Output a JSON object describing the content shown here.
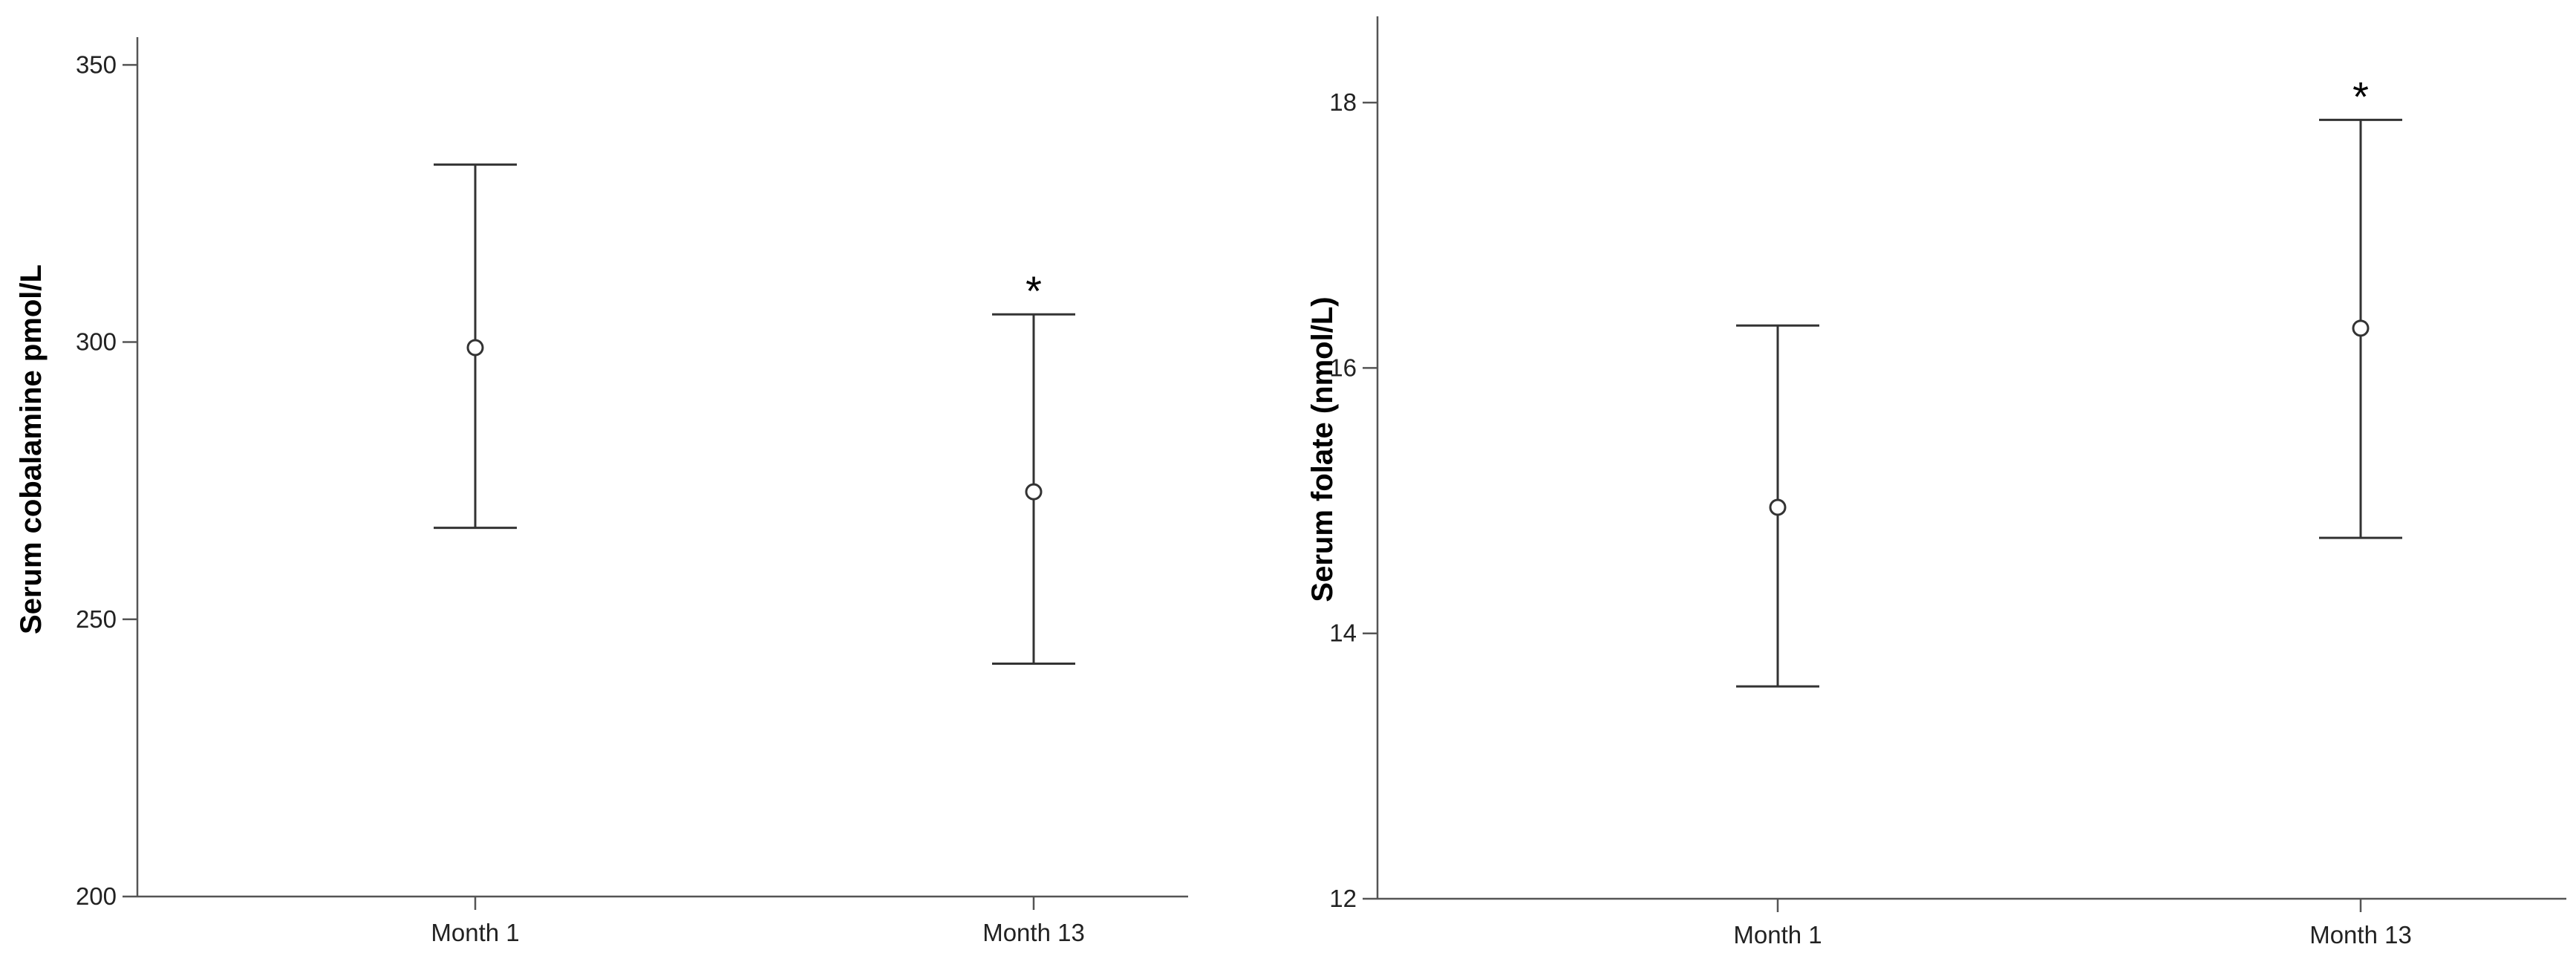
{
  "chart_data": [
    {
      "type": "errorbar",
      "ylabel": "Serum cobalamine pmol/L",
      "xlabel": "",
      "categories": [
        "Month 1",
        "Month 13"
      ],
      "mean": [
        299,
        273
      ],
      "lower": [
        266.5,
        242
      ],
      "upper": [
        332,
        305
      ],
      "ylim": [
        200,
        355
      ],
      "yticks": [
        200,
        250,
        300,
        350
      ],
      "annotations": [
        {
          "category": "Month 13",
          "text": "*"
        }
      ],
      "grid": false,
      "color": "#333333"
    },
    {
      "type": "errorbar",
      "ylabel": "Serum folate (nmol/L)",
      "xlabel": "",
      "categories": [
        "Month 1",
        "Month 13"
      ],
      "mean": [
        14.95,
        16.3
      ],
      "lower": [
        13.6,
        14.72
      ],
      "upper": [
        16.32,
        17.87
      ],
      "ylim": [
        12,
        18.65
      ],
      "yticks": [
        12,
        14,
        16,
        18
      ],
      "annotations": [
        {
          "category": "Month 13",
          "text": "*"
        }
      ],
      "grid": false,
      "color": "#333333"
    }
  ]
}
